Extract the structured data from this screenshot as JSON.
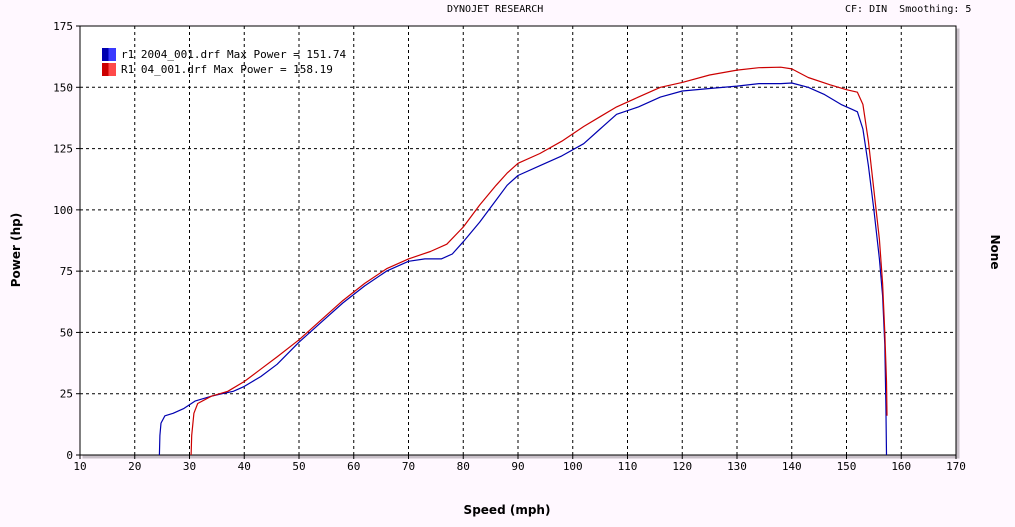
{
  "header": {
    "title": "DYNOJET RESEARCH",
    "settings": "CF: DIN  Smoothing: 5"
  },
  "colors": {
    "background": "#fff8ff",
    "plot_background": "#ffffff",
    "grid": "#000000"
  },
  "chart_data": {
    "type": "line",
    "xlabel": "Speed (mph)",
    "ylabel": "Power (hp)",
    "y2label": "None",
    "xlim": [
      10,
      170
    ],
    "ylim": [
      0,
      175
    ],
    "xticks": [
      10,
      20,
      30,
      40,
      50,
      60,
      70,
      80,
      90,
      100,
      110,
      120,
      130,
      140,
      150,
      160,
      170
    ],
    "yticks": [
      0,
      25,
      50,
      75,
      100,
      125,
      150,
      175
    ],
    "grid": true,
    "legend_position": "top-left",
    "series": [
      {
        "name": "r1 2004_001.drf Max Power = 151.74",
        "color": "#0000b0",
        "swatch": "#3a3aff",
        "points": [
          [
            24.5,
            0
          ],
          [
            24.6,
            8
          ],
          [
            24.8,
            13
          ],
          [
            25.5,
            16
          ],
          [
            27,
            17
          ],
          [
            29,
            19
          ],
          [
            31,
            22
          ],
          [
            34,
            24
          ],
          [
            36,
            25
          ],
          [
            38,
            26
          ],
          [
            40,
            28
          ],
          [
            43,
            32
          ],
          [
            46,
            37
          ],
          [
            50,
            46
          ],
          [
            54,
            54
          ],
          [
            58,
            62
          ],
          [
            62,
            69
          ],
          [
            66,
            75
          ],
          [
            70,
            79
          ],
          [
            73,
            80
          ],
          [
            76,
            80
          ],
          [
            78,
            82
          ],
          [
            80,
            87
          ],
          [
            83,
            95
          ],
          [
            86,
            104
          ],
          [
            88,
            110
          ],
          [
            90,
            114
          ],
          [
            94,
            118
          ],
          [
            98,
            122
          ],
          [
            102,
            127
          ],
          [
            105,
            133
          ],
          [
            108,
            139
          ],
          [
            112,
            142
          ],
          [
            116,
            146
          ],
          [
            120,
            148.5
          ],
          [
            125,
            149.5
          ],
          [
            130,
            150.5
          ],
          [
            134,
            151.5
          ],
          [
            138,
            151.5
          ],
          [
            140,
            151.74
          ],
          [
            143,
            150
          ],
          [
            146,
            147
          ],
          [
            149,
            143
          ],
          [
            151,
            141
          ],
          [
            152,
            140
          ],
          [
            153,
            133
          ],
          [
            154,
            118
          ],
          [
            155,
            100
          ],
          [
            156,
            80
          ],
          [
            156.6,
            65
          ],
          [
            157,
            45
          ],
          [
            157.2,
            20
          ],
          [
            157.3,
            0
          ]
        ]
      },
      {
        "name": "R1 04_001.drf Max Power = 158.19",
        "color": "#cc0000",
        "swatch": "#ff4a4a",
        "points": [
          [
            30.3,
            0
          ],
          [
            30.4,
            8
          ],
          [
            30.8,
            17
          ],
          [
            31.5,
            21
          ],
          [
            34,
            24
          ],
          [
            37,
            26
          ],
          [
            40,
            30
          ],
          [
            43,
            35
          ],
          [
            46,
            40
          ],
          [
            50,
            47
          ],
          [
            54,
            55
          ],
          [
            58,
            63
          ],
          [
            62,
            70
          ],
          [
            66,
            76
          ],
          [
            70,
            80
          ],
          [
            74,
            83
          ],
          [
            77,
            86
          ],
          [
            80,
            93
          ],
          [
            83,
            102
          ],
          [
            86,
            110
          ],
          [
            88,
            115
          ],
          [
            90,
            119
          ],
          [
            94,
            123
          ],
          [
            98,
            128
          ],
          [
            102,
            134
          ],
          [
            105,
            138
          ],
          [
            108,
            142
          ],
          [
            112,
            146
          ],
          [
            116,
            150
          ],
          [
            120,
            152
          ],
          [
            125,
            155
          ],
          [
            130,
            157
          ],
          [
            134,
            158
          ],
          [
            138,
            158.19
          ],
          [
            140,
            157.5
          ],
          [
            143,
            154
          ],
          [
            147,
            151
          ],
          [
            150,
            149
          ],
          [
            152,
            148
          ],
          [
            153,
            143
          ],
          [
            154,
            128
          ],
          [
            155,
            108
          ],
          [
            156,
            88
          ],
          [
            156.6,
            70
          ],
          [
            157,
            50
          ],
          [
            157.3,
            30
          ],
          [
            157.4,
            16
          ]
        ]
      }
    ]
  }
}
